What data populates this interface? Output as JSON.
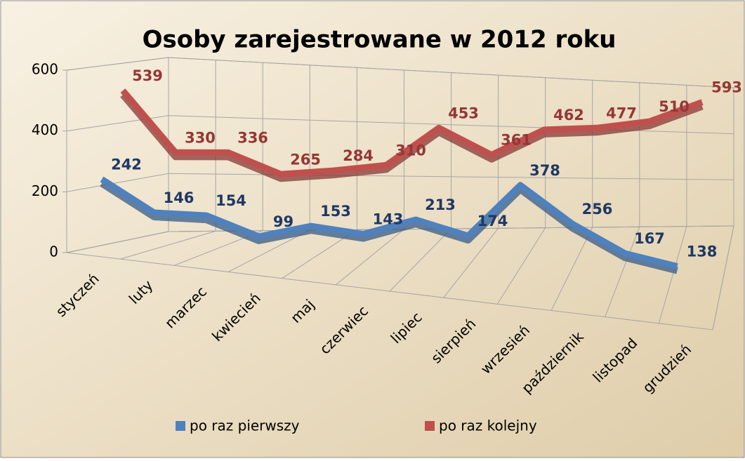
{
  "chart_data": {
    "type": "line3d",
    "title": "Osoby zarejestrowane w 2012 roku",
    "categories": [
      "styczeń",
      "luty",
      "marzec",
      "kwiecień",
      "maj",
      "czerwiec",
      "lipiec",
      "sierpień",
      "wrzesień",
      "październik",
      "listopad",
      "grudzień"
    ],
    "series": [
      {
        "name": "po raz pierwszy",
        "color": "#4f81bd",
        "label_color": "#1f3864",
        "values": [
          242,
          146,
          154,
          99,
          153,
          143,
          213,
          174,
          378,
          256,
          167,
          138
        ]
      },
      {
        "name": "po raz kolejny",
        "color": "#c0504d",
        "label_color": "#953735",
        "values": [
          539,
          330,
          336,
          265,
          284,
          310,
          453,
          361,
          462,
          477,
          510,
          593
        ]
      }
    ],
    "ylim": [
      0,
      600
    ],
    "yticks": [
      0,
      200,
      400,
      600
    ],
    "grid": true,
    "legend": "bottom"
  }
}
